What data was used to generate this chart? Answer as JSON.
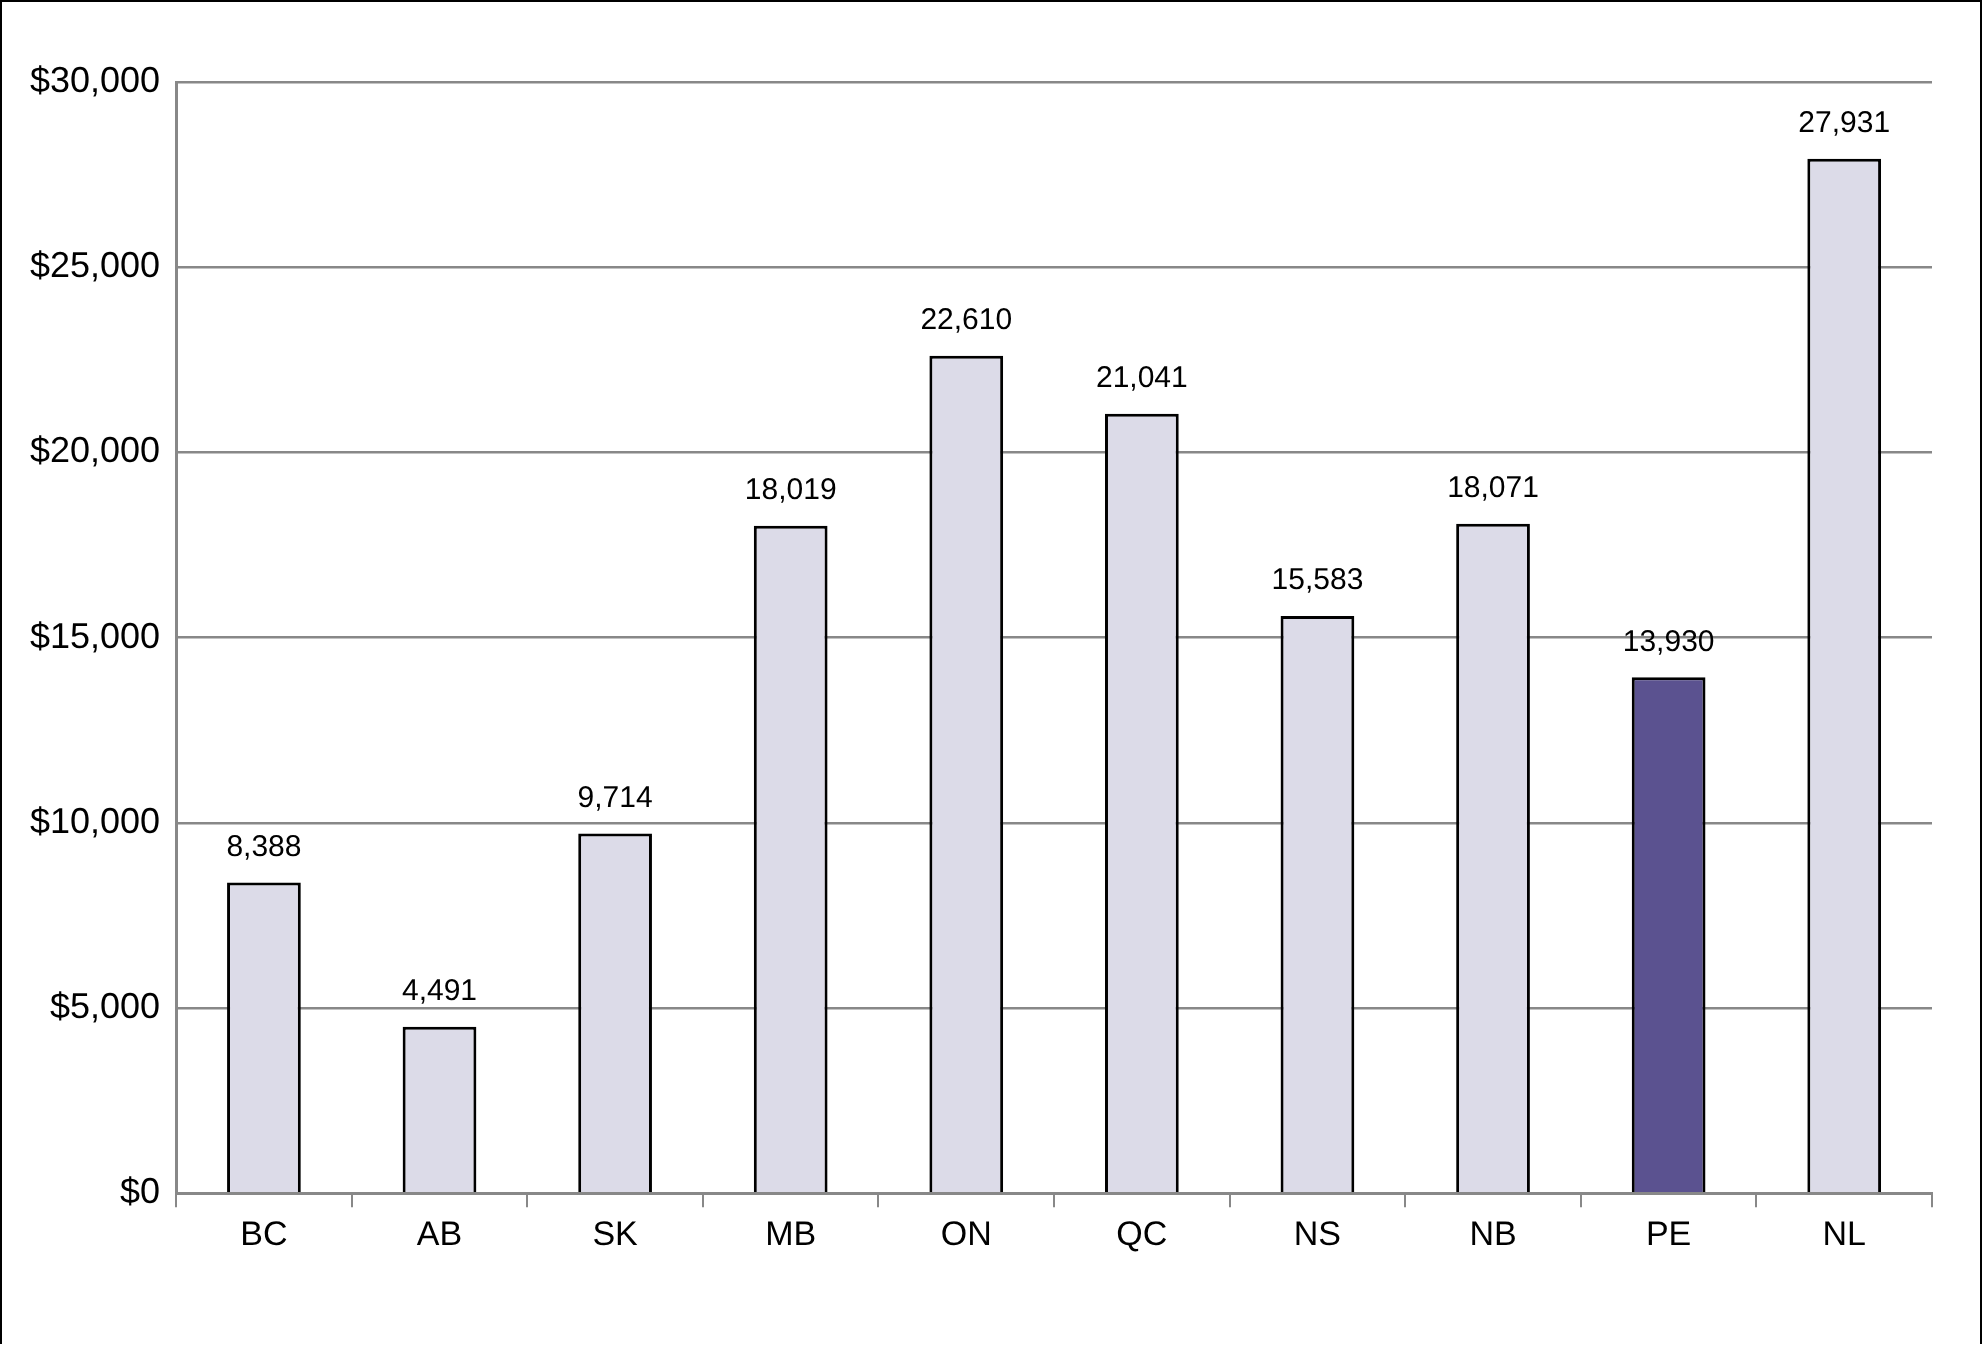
{
  "chart_data": {
    "type": "bar",
    "categories": [
      "BC",
      "AB",
      "SK",
      "MB",
      "ON",
      "QC",
      "NS",
      "NB",
      "PE",
      "NL"
    ],
    "values": [
      8388,
      4491,
      9714,
      18019,
      22610,
      21041,
      15583,
      18071,
      13930,
      27931
    ],
    "colors": [
      "#dcdbe8",
      "#dcdbe8",
      "#dcdbe8",
      "#dcdbe8",
      "#dcdbe8",
      "#dcdbe8",
      "#dcdbe8",
      "#dcdbe8",
      "#5b5290",
      "#dcdbe8"
    ],
    "value_labels": [
      "8,388",
      "4,491",
      "9,714",
      "18,019",
      "22,610",
      "21,041",
      "15,583",
      "18,071",
      "13,930",
      "27,931"
    ],
    "ylim": [
      0,
      30000
    ],
    "yticks": [
      {
        "value": 0,
        "label": "$0"
      },
      {
        "value": 5000,
        "label": "$5,000"
      },
      {
        "value": 10000,
        "label": "$10,000"
      },
      {
        "value": 15000,
        "label": "$15,000"
      },
      {
        "value": 20000,
        "label": "$20,000"
      },
      {
        "value": 25000,
        "label": "$25,000"
      },
      {
        "value": 30000,
        "label": "$30,000"
      }
    ],
    "grid": "y",
    "legend": false
  }
}
